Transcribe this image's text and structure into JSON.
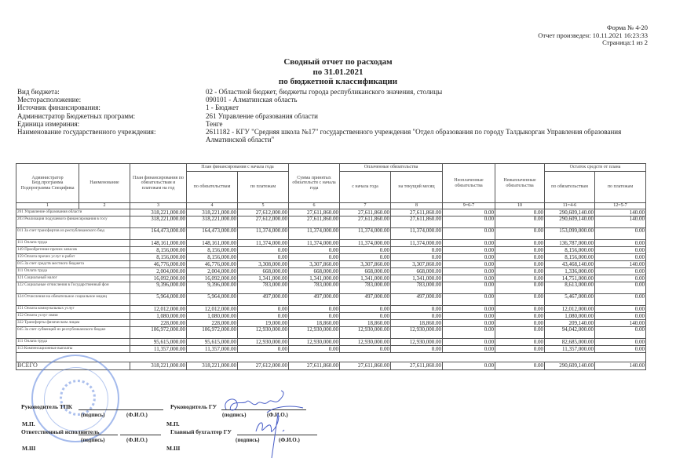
{
  "corner": {
    "form": "Форма № 4-20",
    "produced": "Отчет произведен: 10.11.2021 16:23:33",
    "page": "Страница:1 из 2"
  },
  "title": {
    "line1": "Сводный отчет по расходам",
    "line2": "по 31.01.2021",
    "line3": "по бюджетной классификации"
  },
  "info": [
    {
      "label": "Вид бюджета:",
      "value": "02 - Областной бюджет, бюджеты города республиканского значения, столицы"
    },
    {
      "label": "Месторасположение:",
      "value": "090101 - Алматинская область"
    },
    {
      "label": "Источник финансирования:",
      "value": "1 - Бюджет"
    },
    {
      "label": "Администратор Бюджетных программ:",
      "value": "261 Управление образования области"
    },
    {
      "label": "Единица измериния:",
      "value": "Тенге"
    },
    {
      "label": "Наименование государственного учреждения:",
      "value": "2611182 - КГУ \"Средняя школа №17\" государственного учреждения \"Отдел образования по городу Талдыкорган Управления образования Алматинской области\""
    }
  ],
  "table": {
    "headers": {
      "admin": "Администратор Бюд.программа Подпрограмма Специфика",
      "name": "Наименование",
      "plan_year": "План финансирования по обязательствам и платежам на год",
      "plan_from_start": "План финансирования с начала года",
      "by_obligations": "по обязательствам",
      "by_payments": "по платежам",
      "accepted": "Сумма принятых обязательств с начала года",
      "paid": "Оплаченные обязательства",
      "paid_from_start": "с начала года",
      "paid_month": "на текущий месяц",
      "unpaid": "Неоплаченные обязательства",
      "unsettled": "Невыплаченные обязательства",
      "remaining": "Остаток средств от плана",
      "rem_obligations": "по обязательствам",
      "rem_payments": "по платежам"
    },
    "index_row": [
      "1",
      "2",
      "3",
      "4",
      "5",
      "6",
      "7",
      "8",
      "9=6-7",
      "10",
      "11=4-6",
      "12=5-7"
    ],
    "rows": [
      {
        "name": "261  Управление образования области",
        "tall": false,
        "values": [
          "318,221,000.00",
          "318,221,000.00",
          "27,612,000.00",
          "27,611,860.00",
          "27,611,860.00",
          "27,611,860.00",
          "0.00",
          "0.00",
          "290,609,140.00",
          "140.00"
        ]
      },
      {
        "name": "203  Реализация подушевого финансирования в госу",
        "tall": true,
        "values": [
          "318,221,000.00",
          "318,221,000.00",
          "27,612,000.00",
          "27,611,860.00",
          "27,611,860.00",
          "27,611,860.00",
          "0.00",
          "0.00",
          "290,609,140.00",
          "140.00"
        ]
      },
      {
        "name": "011  За счет трансфертов из республиканского бюд",
        "tall": true,
        "values": [
          "164,473,000.00",
          "164,473,000.00",
          "11,374,000.00",
          "11,374,000.00",
          "11,374,000.00",
          "11,374,000.00",
          "0.00",
          "0.00",
          "153,099,000.00",
          "0.00"
        ]
      },
      {
        "name": "111  Оплата труда",
        "tall": false,
        "values": [
          "148,161,000.00",
          "148,161,000.00",
          "11,374,000.00",
          "11,374,000.00",
          "11,374,000.00",
          "11,374,000.00",
          "0.00",
          "0.00",
          "136,787,000.00",
          "0.00"
        ]
      },
      {
        "name": "149  Приобретение прочих запасов",
        "tall": false,
        "values": [
          "8,156,000.00",
          "8,156,000.00",
          "0.00",
          "0.00",
          "0.00",
          "0.00",
          "0.00",
          "0.00",
          "8,156,000.00",
          "0.00"
        ]
      },
      {
        "name": "159  Оплата прочих услуг и работ",
        "tall": false,
        "values": [
          "8,156,000.00",
          "8,156,000.00",
          "0.00",
          "0.00",
          "0.00",
          "0.00",
          "0.00",
          "0.00",
          "8,156,000.00",
          "0.00"
        ]
      },
      {
        "name": "015  За счет средств местного бюджета",
        "tall": false,
        "values": [
          "46,776,000.00",
          "46,776,000.00",
          "3,308,000.00",
          "3,307,860.00",
          "3,307,860.00",
          "3,307,860.00",
          "0.00",
          "0.00",
          "43,468,140.00",
          "140.00"
        ]
      },
      {
        "name": "111  Оплата труда",
        "tall": false,
        "values": [
          "2,004,000.00",
          "2,004,000.00",
          "668,000.00",
          "668,000.00",
          "668,000.00",
          "668,000.00",
          "0.00",
          "0.00",
          "1,336,000.00",
          "0.00"
        ]
      },
      {
        "name": "121  Социальный налог",
        "tall": false,
        "values": [
          "16,092,000.00",
          "16,092,000.00",
          "1,341,000.00",
          "1,341,000.00",
          "1,341,000.00",
          "1,341,000.00",
          "0.00",
          "0.00",
          "14,751,000.00",
          "0.00"
        ]
      },
      {
        "name": "122  Социальные отчисления в Государственный фон",
        "tall": true,
        "values": [
          "9,396,000.00",
          "9,396,000.00",
          "783,000.00",
          "783,000.00",
          "783,000.00",
          "783,000.00",
          "0.00",
          "0.00",
          "8,613,000.00",
          "0.00"
        ]
      },
      {
        "name": "124  Отчисления на обязательное социальное медиц",
        "tall": true,
        "values": [
          "5,964,000.00",
          "5,964,000.00",
          "497,000.00",
          "497,000.00",
          "497,000.00",
          "497,000.00",
          "0.00",
          "0.00",
          "5,467,000.00",
          "0.00"
        ]
      },
      {
        "name": "151  Оплата коммунальных услуг",
        "tall": false,
        "values": [
          "12,012,000.00",
          "12,012,000.00",
          "0.00",
          "0.00",
          "0.00",
          "0.00",
          "0.00",
          "0.00",
          "12,012,000.00",
          "0.00"
        ]
      },
      {
        "name": "152  Оплата услуг связи",
        "tall": false,
        "values": [
          "1,080,000.00",
          "1,080,000.00",
          "0.00",
          "0.00",
          "0.00",
          "0.00",
          "0.00",
          "0.00",
          "1,080,000.00",
          "0.00"
        ]
      },
      {
        "name": "322  Трансферты физическим лицам",
        "tall": false,
        "values": [
          "228,000.00",
          "228,000.00",
          "19,000.00",
          "18,860.00",
          "18,860.00",
          "18,860.00",
          "0.00",
          "0.00",
          "209,140.00",
          "140.00"
        ]
      },
      {
        "name": "045  За счет субвенций из республиканского бюдже",
        "tall": true,
        "values": [
          "106,972,000.00",
          "106,972,000.00",
          "12,930,000.00",
          "12,930,000.00",
          "12,930,000.00",
          "12,930,000.00",
          "0.00",
          "0.00",
          "94,042,000.00",
          "0.00"
        ]
      },
      {
        "name": "111  Оплата труда",
        "tall": false,
        "values": [
          "95,615,000.00",
          "95,615,000.00",
          "12,930,000.00",
          "12,930,000.00",
          "12,930,000.00",
          "12,930,000.00",
          "0.00",
          "0.00",
          "82,685,000.00",
          "0.00"
        ]
      },
      {
        "name": "113  Компенсационные выплаты",
        "tall": false,
        "values": [
          "11,357,000.00",
          "11,357,000.00",
          "0.00",
          "0.00",
          "0.00",
          "0.00",
          "0.00",
          "0.00",
          "11,357,000.00",
          "0.00"
        ]
      }
    ],
    "total": {
      "label": "ВСЕГО",
      "values": [
        "318,221,000.00",
        "318,221,000.00",
        "27,612,000.00",
        "27,611,860.00",
        "27,611,860.00",
        "27,611,860.00",
        "0.00",
        "0.00",
        "290,609,140.00",
        "140.00"
      ]
    }
  },
  "signatures": {
    "head_tpk": "Руководитель ТПК",
    "head_gu": "Руководитель ГУ",
    "responsible": "Ответственный исполнитель",
    "chief_accountant": "Главный бухгалтер ГУ",
    "signature_hint": "(подпись)",
    "fio_hint": "(Ф.И.О.)",
    "mp": "М.П.",
    "msh": "М.Ш"
  },
  "stamp_color": "#5a82dc",
  "signature_ink_color": "#4a5fc8"
}
